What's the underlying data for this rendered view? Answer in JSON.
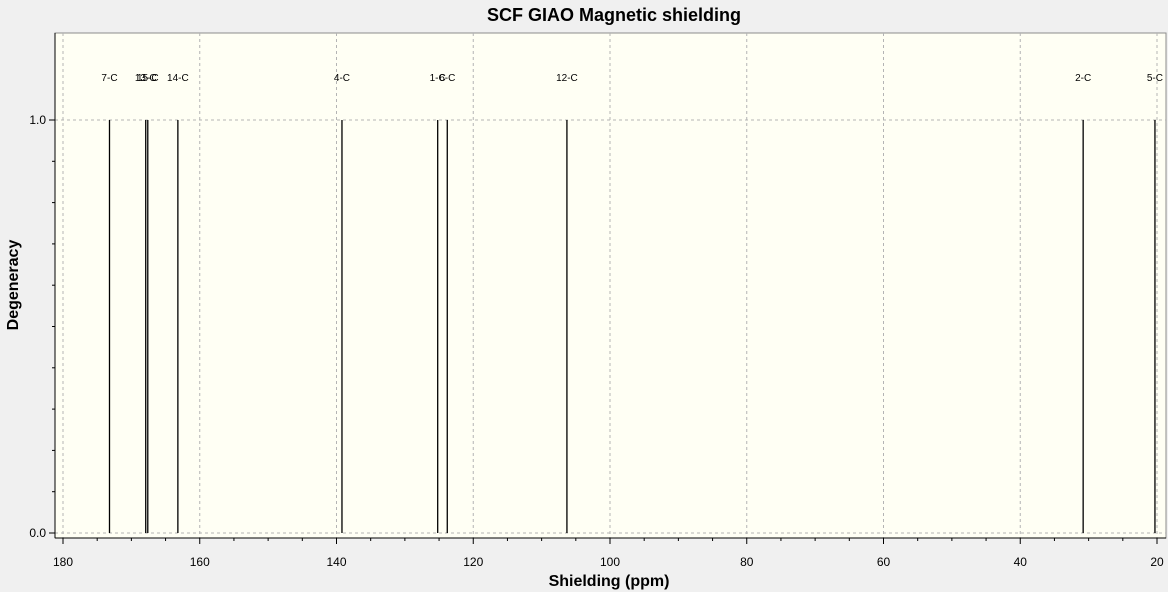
{
  "chart_data": {
    "type": "bar",
    "title": "SCF GIAO Magnetic shielding",
    "xlabel": "Shielding (ppm)",
    "ylabel": "Degeneracy",
    "xlim": [
      180,
      20
    ],
    "ylim": [
      0,
      1.2
    ],
    "x_reversed": true,
    "x_ticks": [
      "180",
      "160",
      "140",
      "120",
      "100",
      "80",
      "60",
      "40",
      "20"
    ],
    "y_ticks": [
      "0.0",
      "1.0"
    ],
    "grid": true,
    "colors": {
      "plot_background": "#fffff4",
      "window_background": "#f0f0f0",
      "peak": "#000000"
    },
    "peaks": [
      {
        "label": "7-C",
        "x": 173.2,
        "y": 1.0
      },
      {
        "label": "13-C",
        "x": 167.9,
        "y": 1.0
      },
      {
        "label": "15-C",
        "x": 167.6,
        "y": 1.0
      },
      {
        "label": "14-C",
        "x": 163.2,
        "y": 1.0
      },
      {
        "label": "4-C",
        "x": 139.2,
        "y": 1.0
      },
      {
        "label": "1-C",
        "x": 125.2,
        "y": 1.0
      },
      {
        "label": "6-C",
        "x": 123.8,
        "y": 1.0
      },
      {
        "label": "12-C",
        "x": 106.3,
        "y": 1.0
      },
      {
        "label": "2-C",
        "x": 30.8,
        "y": 1.0
      },
      {
        "label": "5-C",
        "x": 20.3,
        "y": 1.0
      }
    ]
  }
}
